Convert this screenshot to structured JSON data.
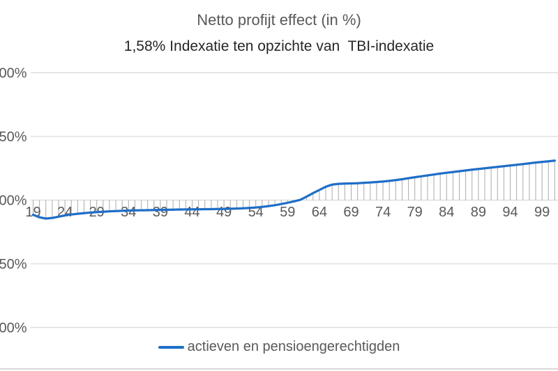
{
  "header": {
    "title": "Netto profijt effect (in %)",
    "subtitle": "1,58% Indexatie ten opzichte van  TBI-indexatie"
  },
  "legend": {
    "label": "actieven en pensioengerechtigden"
  },
  "colors": {
    "line": "#1f6ec8",
    "gridline": "#d9d9d9",
    "drop_line": "#ababab",
    "axis_text": "#595959",
    "title_text": "#595959",
    "subtitle_text": "#262626",
    "bottom_edge": "#d9d9d9"
  },
  "chart_data": {
    "type": "line",
    "title": "Netto profijt effect (in %)",
    "subtitle": "1,58% Indexatie ten opzichte van  TBI-indexatie",
    "grid": true,
    "drop_lines": true,
    "legend_position": "bottom",
    "ylim": [
      -1.35,
      1.1
    ],
    "y_unit": "%",
    "y_gridlines": [
      {
        "value": 1.0,
        "visible_label": "00%"
      },
      {
        "value": 0.5,
        "visible_label": "50%"
      },
      {
        "value": 0.0,
        "visible_label": "00%"
      },
      {
        "value": -0.5,
        "visible_label": "50%"
      },
      {
        "value": -1.0,
        "visible_label": "00%"
      }
    ],
    "x_tick_labels": [
      19,
      24,
      29,
      34,
      39,
      44,
      49,
      54,
      59,
      64,
      69,
      74,
      79,
      84,
      89,
      94,
      99
    ],
    "x": [
      19,
      20,
      21,
      22,
      23,
      24,
      25,
      26,
      27,
      28,
      29,
      30,
      31,
      32,
      33,
      34,
      35,
      36,
      37,
      38,
      39,
      40,
      41,
      42,
      43,
      44,
      45,
      46,
      47,
      48,
      49,
      50,
      51,
      52,
      53,
      54,
      55,
      56,
      57,
      58,
      59,
      60,
      61,
      62,
      63,
      64,
      65,
      66,
      67,
      68,
      69,
      70,
      71,
      72,
      73,
      74,
      75,
      76,
      77,
      78,
      79,
      80,
      81,
      82,
      83,
      84,
      85,
      86,
      87,
      88,
      89,
      90,
      91,
      92,
      93,
      94,
      95,
      96,
      97,
      98,
      99,
      100,
      101
    ],
    "series": [
      {
        "name": "actieven en pensioengerechtigden",
        "color": "#1f6ec8",
        "values": [
          -0.115,
          -0.135,
          -0.145,
          -0.14,
          -0.13,
          -0.12,
          -0.113,
          -0.107,
          -0.102,
          -0.098,
          -0.094,
          -0.091,
          -0.088,
          -0.086,
          -0.084,
          -0.082,
          -0.081,
          -0.08,
          -0.079,
          -0.078,
          -0.077,
          -0.076,
          -0.075,
          -0.074,
          -0.073,
          -0.072,
          -0.072,
          -0.071,
          -0.071,
          -0.07,
          -0.07,
          -0.068,
          -0.066,
          -0.064,
          -0.061,
          -0.058,
          -0.053,
          -0.047,
          -0.04,
          -0.031,
          -0.021,
          -0.01,
          0.002,
          0.028,
          0.055,
          0.08,
          0.105,
          0.122,
          0.128,
          0.13,
          0.131,
          0.133,
          0.136,
          0.139,
          0.142,
          0.146,
          0.151,
          0.157,
          0.164,
          0.172,
          0.18,
          0.187,
          0.194,
          0.201,
          0.208,
          0.215,
          0.221,
          0.227,
          0.233,
          0.239,
          0.245,
          0.25,
          0.255,
          0.261,
          0.266,
          0.272,
          0.277,
          0.283,
          0.289,
          0.295,
          0.3,
          0.305,
          0.31
        ]
      }
    ]
  }
}
